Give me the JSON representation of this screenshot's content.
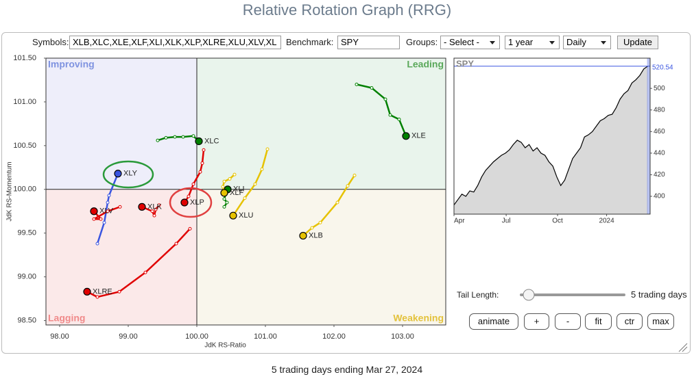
{
  "header": {
    "title": "Relative Rotation Graph (RRG)"
  },
  "controls": {
    "symbols_label": "Symbols:",
    "symbols": "XLB,XLC,XLE,XLF,XLI,XLK,XLP,XLRE,XLU,XLV,XL",
    "benchmark_label": "Benchmark:",
    "benchmark": "SPY",
    "groups_label": "Groups:",
    "groups": "- Select -",
    "period": "1 year",
    "frequency": "Daily",
    "update": "Update",
    "tail_label": "Tail Length:",
    "tail_value": "5 trading days",
    "buttons": [
      "animate",
      "+",
      "-",
      "fit",
      "ctr",
      "max"
    ]
  },
  "chart_data": [
    {
      "type": "rrg",
      "xlabel": "JdK RS-Ratio",
      "ylabel": "JdK RS-Momentum",
      "xlim": [
        97.8,
        103.63
      ],
      "ylim": [
        98.45,
        101.5
      ],
      "origin": [
        100,
        100
      ],
      "xticks": [
        {
          "value": 98,
          "label": "98.00"
        },
        {
          "value": 99,
          "label": "99.00"
        },
        {
          "value": 100,
          "label": "100.00"
        },
        {
          "value": 101,
          "label": "101.00"
        },
        {
          "value": 102,
          "label": "102.00"
        },
        {
          "value": 103,
          "label": "103.00"
        }
      ],
      "yticks": [
        {
          "value": 98.5,
          "label": "98.50"
        },
        {
          "value": 99,
          "label": "99.00"
        },
        {
          "value": 99.5,
          "label": "99.50"
        },
        {
          "value": 100,
          "label": "100.00"
        },
        {
          "value": 100.5,
          "label": "100.50"
        },
        {
          "value": 101,
          "label": "101.00"
        },
        {
          "value": 101.5,
          "label": "101.50"
        }
      ],
      "quadrants": [
        {
          "name": "Improving",
          "corner": "top-left",
          "color": "#7f93e0",
          "fill": "#eeeefa"
        },
        {
          "name": "Leading",
          "corner": "top-right",
          "color": "#5aa85a",
          "fill": "#e9f4ec"
        },
        {
          "name": "Lagging",
          "corner": "bottom-left",
          "color": "#f08a8a",
          "fill": "#fbe9e9"
        },
        {
          "name": "Weakening",
          "corner": "bottom-right",
          "color": "#e3c23c",
          "fill": "#f9f6ec"
        }
      ],
      "series": [
        {
          "name": "XLE",
          "color": "#008000",
          "x": [
            102.33,
            102.55,
            102.75,
            102.82,
            102.95,
            103.05
          ],
          "y": [
            101.2,
            101.16,
            101.03,
            100.85,
            100.8,
            100.61
          ]
        },
        {
          "name": "XLC",
          "color": "#008000",
          "x": [
            99.43,
            99.55,
            99.68,
            99.8,
            99.95,
            100.03
          ],
          "y": [
            100.56,
            100.59,
            100.6,
            100.6,
            100.61,
            100.55
          ]
        },
        {
          "name": "XLI",
          "color": "#008000",
          "x": [
            100.4,
            100.44,
            100.4,
            100.43,
            100.45
          ],
          "y": [
            99.8,
            99.85,
            99.89,
            99.97,
            100.0
          ]
        },
        {
          "name": "XLF",
          "color": "#e6c200",
          "x": [
            100.55,
            100.48,
            100.4,
            100.38,
            100.4
          ],
          "y": [
            100.17,
            100.12,
            100.09,
            100.03,
            99.96
          ]
        },
        {
          "name": "XLU",
          "color": "#e6c200",
          "x": [
            101.03,
            100.95,
            100.85,
            100.7,
            100.53
          ],
          "y": [
            100.46,
            100.23,
            100.06,
            99.9,
            99.7
          ]
        },
        {
          "name": "XLB",
          "color": "#e6c200",
          "x": [
            102.3,
            102.2,
            102.05,
            101.8,
            101.68,
            101.55
          ],
          "y": [
            100.16,
            100.04,
            99.85,
            99.62,
            99.56,
            99.47
          ]
        },
        {
          "name": "XLY",
          "color": "#3a55e0",
          "x": [
            98.55,
            98.65,
            98.7,
            98.72,
            98.85
          ],
          "y": [
            99.38,
            99.62,
            99.85,
            99.93,
            100.18
          ]
        },
        {
          "name": "XLV",
          "color": "#e00000",
          "x": [
            98.88,
            98.7,
            98.5,
            98.6,
            98.5
          ],
          "y": [
            99.8,
            99.75,
            99.66,
            99.66,
            99.75
          ]
        },
        {
          "name": "XLK",
          "color": "#e00000",
          "x": [
            99.45,
            99.4,
            99.38,
            99.35,
            99.2
          ],
          "y": [
            99.82,
            99.77,
            99.7,
            99.75,
            99.8
          ]
        },
        {
          "name": "XLP",
          "color": "#e00000",
          "x": [
            100.1,
            100.08,
            100.05,
            99.95,
            99.88,
            99.82
          ],
          "y": [
            100.45,
            100.3,
            100.2,
            100.06,
            99.92,
            99.85
          ]
        },
        {
          "name": "XLRE",
          "color": "#e00000",
          "x": [
            99.9,
            99.7,
            99.25,
            98.87,
            98.55,
            98.4
          ],
          "y": [
            99.55,
            99.38,
            99.05,
            98.83,
            98.77,
            98.83
          ]
        }
      ]
    },
    {
      "type": "area",
      "title": "SPY",
      "color": "#000000",
      "fill": "#d9d9d9",
      "marker_color": "#3a55e0",
      "xlim": [
        0,
        248
      ],
      "ylim": [
        383.5,
        528
      ],
      "xticks": [
        {
          "value": 0,
          "label": "Apr"
        },
        {
          "value": 66,
          "label": "Jul"
        },
        {
          "value": 131,
          "label": "Oct"
        },
        {
          "value": 193,
          "label": "2024"
        }
      ],
      "yticks": [
        400,
        420,
        440,
        460,
        480,
        500
      ],
      "x": [
        0,
        5,
        10,
        15,
        20,
        25,
        30,
        35,
        40,
        45,
        50,
        55,
        60,
        65,
        70,
        75,
        80,
        85,
        90,
        95,
        100,
        105,
        110,
        115,
        120,
        125,
        130,
        135,
        140,
        145,
        150,
        155,
        160,
        165,
        170,
        175,
        180,
        185,
        190,
        195,
        200,
        205,
        210,
        215,
        220,
        225,
        230,
        235,
        240,
        245
      ],
      "values": [
        392,
        397,
        402,
        400,
        405,
        404,
        410,
        418,
        424,
        428,
        432,
        435,
        438,
        440,
        443,
        448,
        452,
        450,
        445,
        448,
        442,
        445,
        440,
        438,
        432,
        428,
        418,
        410,
        415,
        425,
        435,
        440,
        445,
        455,
        457,
        460,
        465,
        470,
        472,
        475,
        476,
        482,
        490,
        495,
        498,
        505,
        508,
        512,
        518,
        520.54
      ]
    }
  ],
  "footer": "5 trading days ending Mar 27, 2024"
}
